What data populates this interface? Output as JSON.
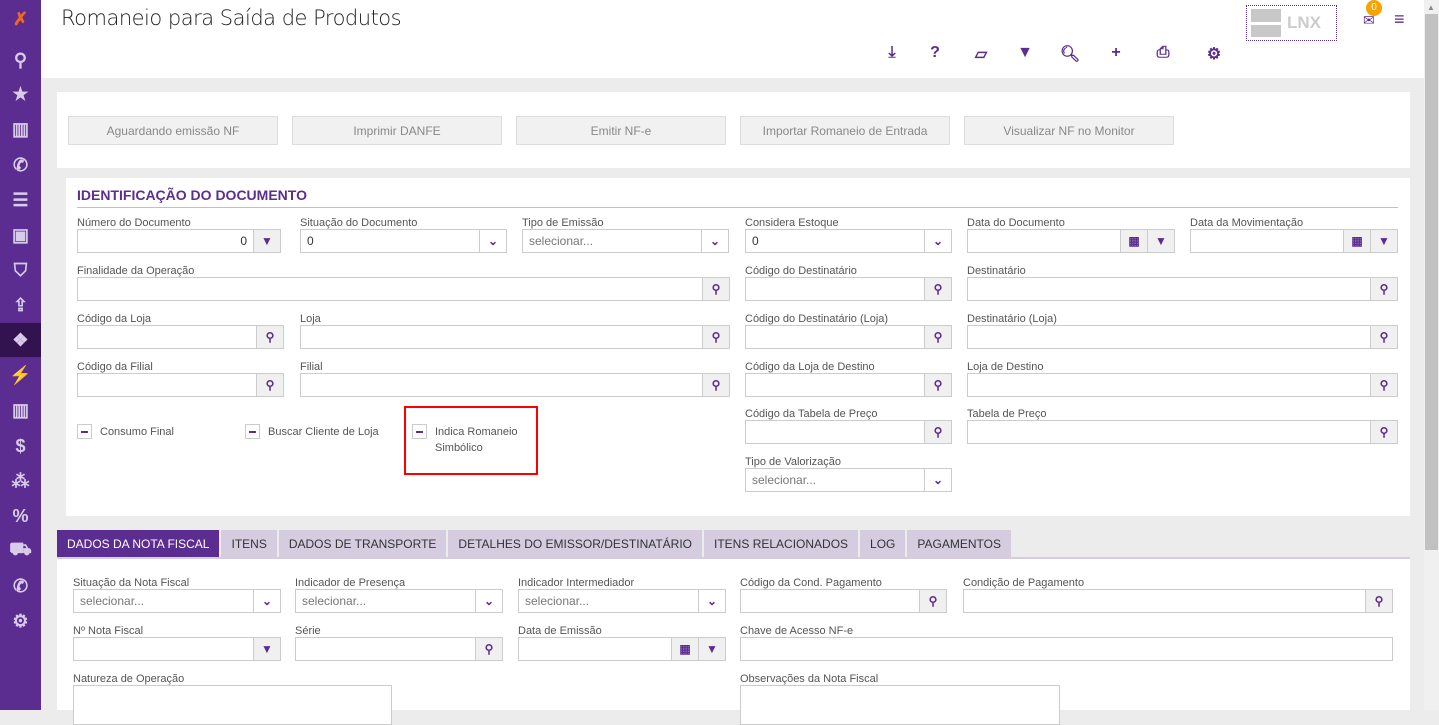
{
  "header": {
    "title": "Romaneio para Saída de Produtos",
    "logo_text": "LNX",
    "mail_count": "0",
    "toolbar": [
      {
        "icon": "download-icon",
        "glyph": "⤓"
      },
      {
        "icon": "help-icon",
        "glyph": "?"
      },
      {
        "icon": "eraser-icon",
        "glyph": "▱"
      },
      {
        "icon": "filter-icon",
        "glyph": "▼"
      },
      {
        "icon": "search-icon",
        "glyph": "🔍︎"
      },
      {
        "icon": "plus-icon",
        "glyph": "+"
      },
      {
        "icon": "print-icon",
        "glyph": "⎙"
      },
      {
        "icon": "gear-icon",
        "glyph": "⚙"
      }
    ]
  },
  "sidebar": [
    {
      "icon": "logo-icon",
      "glyph": "✗"
    },
    {
      "icon": "search-icon",
      "glyph": "⚲"
    },
    {
      "icon": "star-icon",
      "glyph": "★"
    },
    {
      "icon": "bar-chart-icon",
      "glyph": "▥"
    },
    {
      "icon": "phone-icon",
      "glyph": "✆"
    },
    {
      "icon": "list-icon",
      "glyph": "☰"
    },
    {
      "icon": "contacts-icon",
      "glyph": "▣"
    },
    {
      "icon": "basket-icon",
      "glyph": "⛉"
    },
    {
      "icon": "upload-icon",
      "glyph": "⇪"
    },
    {
      "icon": "dropbox-icon",
      "glyph": "❖",
      "active": true
    },
    {
      "icon": "plug-icon",
      "glyph": "⚡"
    },
    {
      "icon": "bar-chart-icon",
      "glyph": "▥"
    },
    {
      "icon": "dollar-icon",
      "glyph": "$"
    },
    {
      "icon": "cubes-icon",
      "glyph": "⁂"
    },
    {
      "icon": "percent-icon",
      "glyph": "%"
    },
    {
      "icon": "cart-icon",
      "glyph": "⛟"
    },
    {
      "icon": "phone-square-icon",
      "glyph": "✆"
    },
    {
      "icon": "cogs-icon",
      "glyph": "⚙"
    }
  ],
  "actions": [
    "Aguardando emissão NF",
    "Imprimir DANFE",
    "Emitir NF-e",
    "Importar Romaneio de Entrada",
    "Visualizar NF no Monitor"
  ],
  "section_title": "IDENTIFICAÇÃO DO DOCUMENTO",
  "doc_fields": [
    {
      "label": "Número do Documento",
      "value": "0",
      "addon": "filter",
      "align": "right"
    },
    {
      "label": "Situação do Documento",
      "value": "0",
      "addon": "select"
    },
    {
      "label": "Tipo de Emissão",
      "placeholder": "selecionar...",
      "addon": "select"
    },
    {
      "label": "Considera Estoque",
      "value": "0",
      "addon": "select"
    },
    {
      "label": "Data do Documento",
      "addon": "calendar-filter"
    },
    {
      "label": "Data da Movimentação",
      "addon": "calendar-filter"
    },
    {
      "label": "Finalidade da Operação",
      "addon": "search"
    },
    {
      "label": "Código do Destinatário",
      "addon": "search"
    },
    {
      "label": "Destinatário",
      "addon": "search"
    },
    {
      "label": "Código da Loja",
      "addon": "search"
    },
    {
      "label": "Loja",
      "addon": "search"
    },
    {
      "label": "Código do Destinatário (Loja)",
      "addon": "search"
    },
    {
      "label": "Destinatário (Loja)",
      "addon": "search"
    },
    {
      "label": "Código da Filial",
      "addon": "search"
    },
    {
      "label": "Filial",
      "addon": "search"
    },
    {
      "label": "Código da Loja de Destino",
      "addon": "search"
    },
    {
      "label": "Loja de Destino",
      "addon": "search"
    },
    {
      "label": "Código da Tabela de Preço",
      "addon": "search"
    },
    {
      "label": "Tabela de Preço",
      "addon": "search"
    },
    {
      "label": "Tipo de Valorização",
      "placeholder": "selecionar...",
      "addon": "select"
    }
  ],
  "checkboxes": [
    {
      "label": "Consumo Final",
      "checked": "indeterminate"
    },
    {
      "label": "Buscar Cliente de Loja",
      "checked": "indeterminate"
    },
    {
      "label": "Indica Romaneio Simbólico",
      "checked": "indeterminate",
      "highlighted": true
    }
  ],
  "tabs": [
    {
      "label": "DADOS DA NOTA FISCAL",
      "active": true
    },
    {
      "label": "ITENS"
    },
    {
      "label": "DADOS DE TRANSPORTE"
    },
    {
      "label": "DETALHES DO EMISSOR/DESTINATÁRIO"
    },
    {
      "label": "ITENS RELACIONADOS"
    },
    {
      "label": "LOG"
    },
    {
      "label": "PAGAMENTOS"
    }
  ],
  "nf_fields": [
    {
      "label": "Situação da Nota Fiscal",
      "placeholder": "selecionar...",
      "addon": "select"
    },
    {
      "label": "Indicador de Presença",
      "placeholder": "selecionar...",
      "addon": "select"
    },
    {
      "label": "Indicador Intermediador",
      "placeholder": "selecionar...",
      "addon": "select"
    },
    {
      "label": "Código da Cond. Pagamento",
      "addon": "search"
    },
    {
      "label": "Condição de Pagamento",
      "addon": "search"
    },
    {
      "label": "Nº Nota Fiscal",
      "addon": "filter"
    },
    {
      "label": "Série",
      "addon": "search"
    },
    {
      "label": "Data de Emissão",
      "addon": "calendar-filter"
    },
    {
      "label": "Chave de Acesso NF-e",
      "addon": "none"
    },
    {
      "label": "Natureza de Operação",
      "addon": "none"
    },
    {
      "label": "Observações da Nota Fiscal",
      "addon": "none"
    }
  ],
  "colors": {
    "brand": "#5c2d91",
    "badge": "#f7a400",
    "highlight": "#ff0000"
  }
}
